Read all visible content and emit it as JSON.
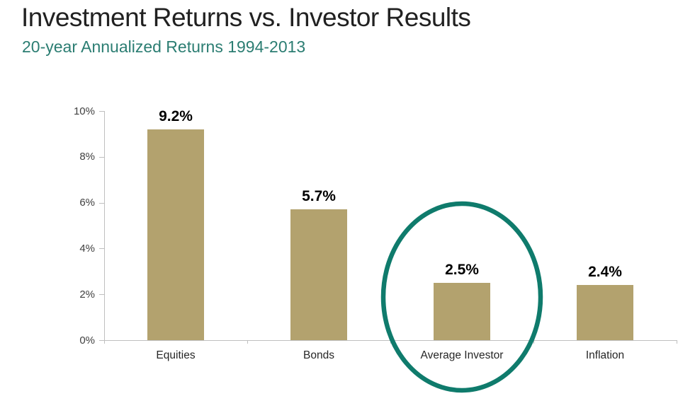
{
  "page": {
    "title": "Investment Returns vs. Investor Results",
    "subtitle": "20-year Annualized Returns 1994-2013"
  },
  "colors": {
    "title_text": "#212121",
    "subtitle_text": "#2B7D72",
    "bar_fill": "#B3A26E",
    "axis_line": "#BFBFBF",
    "ytick_label": "#404040",
    "value_label": "#000000",
    "category_label": "#262626",
    "highlight_ellipse": "#0F7B6C"
  },
  "chart_data": {
    "type": "bar",
    "title": "Investment Returns vs. Investor Results",
    "subtitle": "20-year Annualized Returns 1994-2013",
    "categories": [
      "Equities",
      "Bonds",
      "Average Investor",
      "Inflation"
    ],
    "values": [
      9.2,
      5.7,
      2.5,
      2.4
    ],
    "value_labels": [
      "9.2%",
      "5.7%",
      "2.5%",
      "2.4%"
    ],
    "xlabel": "",
    "ylabel": "",
    "ylim": [
      0,
      10
    ],
    "yticks": [
      0,
      2,
      4,
      6,
      8,
      10
    ],
    "ytick_labels": [
      "0%",
      "2%",
      "4%",
      "6%",
      "8%",
      "10%"
    ],
    "grid": false,
    "legend": false,
    "bar_color": "#B3A26E",
    "annotation": {
      "shape": "ellipse",
      "highlighted_category": "Average Investor",
      "highlighted_category_index": 2,
      "color": "#0F7B6C",
      "meaning": "circle emphasizing the Average Investor bar"
    }
  }
}
